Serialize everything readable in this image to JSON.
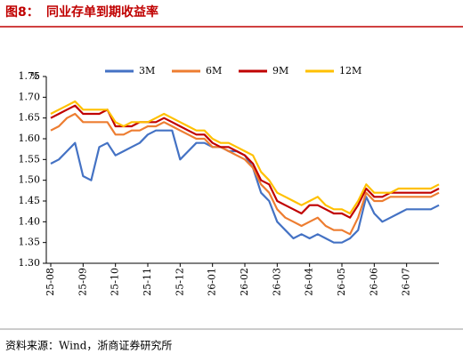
{
  "figure_label": "图8：",
  "chart_data": {
    "type": "line",
    "title": "同业存单到期收益率",
    "y_unit": "%",
    "categories": [
      "25-08",
      null,
      null,
      null,
      "25-09",
      null,
      null,
      null,
      "25-10",
      null,
      null,
      null,
      "25-11",
      null,
      null,
      null,
      "25-12",
      null,
      null,
      null,
      "26-01",
      null,
      null,
      null,
      "26-02",
      null,
      null,
      null,
      "26-03",
      null,
      null,
      null,
      "26-04",
      null,
      null,
      null,
      "26-05",
      null,
      null,
      null,
      "26-06",
      null,
      null,
      null,
      "26-07",
      null,
      null,
      null,
      null
    ],
    "series": [
      {
        "name": "3M",
        "color": "#4472c4",
        "values": [
          1.54,
          1.55,
          1.57,
          1.59,
          1.51,
          1.5,
          1.58,
          1.59,
          1.56,
          1.57,
          1.58,
          1.59,
          1.61,
          1.62,
          1.62,
          1.62,
          1.55,
          1.57,
          1.59,
          1.59,
          1.58,
          1.58,
          1.57,
          1.57,
          1.56,
          1.53,
          1.47,
          1.45,
          1.4,
          1.38,
          1.36,
          1.37,
          1.36,
          1.37,
          1.36,
          1.35,
          1.35,
          1.36,
          1.38,
          1.46,
          1.42,
          1.4,
          1.41,
          1.42,
          1.43,
          1.43,
          1.43,
          1.43,
          1.44
        ]
      },
      {
        "name": "6M",
        "color": "#ed7d31",
        "values": [
          1.62,
          1.63,
          1.65,
          1.66,
          1.64,
          1.64,
          1.64,
          1.64,
          1.61,
          1.61,
          1.62,
          1.62,
          1.63,
          1.63,
          1.64,
          1.63,
          1.62,
          1.61,
          1.6,
          1.6,
          1.58,
          1.58,
          1.57,
          1.56,
          1.55,
          1.53,
          1.49,
          1.47,
          1.43,
          1.41,
          1.4,
          1.39,
          1.4,
          1.41,
          1.39,
          1.38,
          1.38,
          1.37,
          1.41,
          1.47,
          1.45,
          1.45,
          1.46,
          1.46,
          1.46,
          1.46,
          1.46,
          1.46,
          1.47
        ]
      },
      {
        "name": "9M",
        "color": "#c00000",
        "values": [
          1.65,
          1.66,
          1.67,
          1.68,
          1.66,
          1.66,
          1.66,
          1.67,
          1.63,
          1.63,
          1.63,
          1.64,
          1.64,
          1.64,
          1.65,
          1.64,
          1.63,
          1.62,
          1.61,
          1.61,
          1.59,
          1.58,
          1.58,
          1.57,
          1.56,
          1.54,
          1.5,
          1.49,
          1.45,
          1.44,
          1.43,
          1.42,
          1.44,
          1.44,
          1.43,
          1.42,
          1.42,
          1.41,
          1.44,
          1.48,
          1.46,
          1.46,
          1.47,
          1.47,
          1.47,
          1.47,
          1.47,
          1.47,
          1.48
        ]
      },
      {
        "name": "12M",
        "color": "#ffc000",
        "values": [
          1.66,
          1.67,
          1.68,
          1.69,
          1.67,
          1.67,
          1.67,
          1.67,
          1.64,
          1.63,
          1.64,
          1.64,
          1.64,
          1.65,
          1.66,
          1.65,
          1.64,
          1.63,
          1.62,
          1.62,
          1.6,
          1.59,
          1.59,
          1.58,
          1.57,
          1.56,
          1.52,
          1.5,
          1.47,
          1.46,
          1.45,
          1.44,
          1.45,
          1.46,
          1.44,
          1.43,
          1.43,
          1.42,
          1.45,
          1.49,
          1.47,
          1.47,
          1.47,
          1.48,
          1.48,
          1.48,
          1.48,
          1.48,
          1.49
        ]
      }
    ],
    "ylim": [
      1.3,
      1.75
    ],
    "yticks": [
      {
        "value": 1.3,
        "label": "1.30"
      },
      1.35,
      {
        "value": 1.4,
        "label": "1.40"
      },
      1.45,
      {
        "value": 1.5,
        "label": "1.50"
      },
      1.55,
      {
        "value": 1.6,
        "label": "1.60"
      },
      1.65,
      {
        "value": 1.7,
        "label": "1.70"
      },
      1.75
    ],
    "grid": false,
    "legend": "top"
  },
  "source": "资料来源：Wind，浙商证券研究所"
}
